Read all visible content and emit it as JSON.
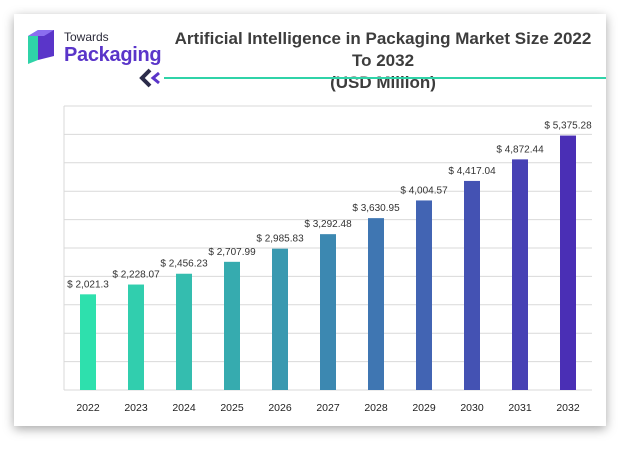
{
  "logo": {
    "line1": "Towards",
    "line2": "Packaging"
  },
  "colors": {
    "brand_purple": "#5a35c9",
    "divider_teal": "#2fd3a8",
    "chevron_dark": "#2c2c4a",
    "grid": "#d9d9d9",
    "bar_start": "#2ee0ad",
    "bar_end": "#4a2fb5"
  },
  "chart_data": {
    "type": "bar",
    "title": "Artificial Intelligence in Packaging Market Size 2022 To 2032\n(USD Million)",
    "title_lines": [
      "Artificial Intelligence in Packaging Market Size 2022 To 2032",
      "(USD Million)"
    ],
    "xlabel": "",
    "ylabel": "",
    "categories": [
      "2022",
      "2023",
      "2024",
      "2025",
      "2026",
      "2027",
      "2028",
      "2029",
      "2030",
      "2031",
      "2032"
    ],
    "values": [
      2021.3,
      2228.07,
      2456.23,
      2707.99,
      2985.83,
      3292.48,
      3630.95,
      4004.57,
      4417.04,
      4872.44,
      5375.28
    ],
    "data_labels": [
      "$ 2,021.3",
      "$ 2,228.07",
      "$ 2,456.23",
      "$ 2,707.99",
      "$ 2,985.83",
      "$ 3,292.48",
      "$ 3,630.95",
      "$ 4,004.57",
      "$ 4,417.04",
      "$ 4,872.44",
      "$ 5,375.28"
    ],
    "ylim": [
      0,
      6000
    ],
    "grid": true,
    "y_tick_labels_shown": false,
    "legend": "none"
  }
}
